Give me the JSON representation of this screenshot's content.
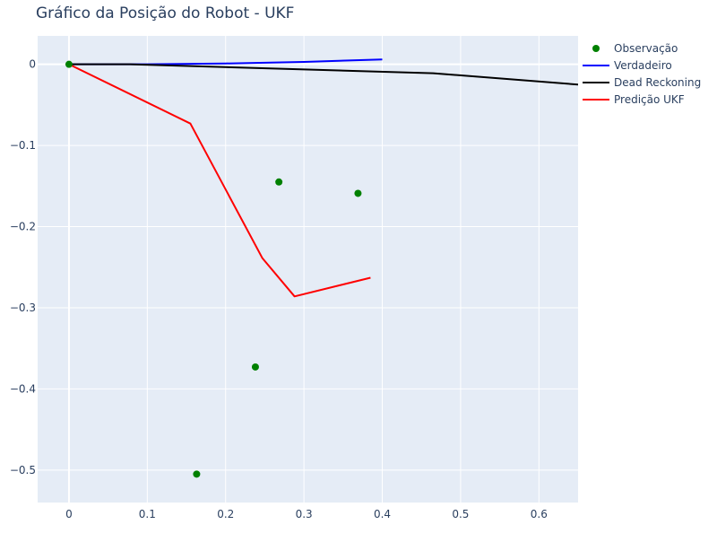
{
  "chart_data": {
    "type": "line",
    "title": "Gráfico da Posição do Robot - UKF",
    "xlabel": "",
    "ylabel": "",
    "xlim": [
      -0.04,
      0.65
    ],
    "ylim": [
      -0.54,
      0.035
    ],
    "x_ticks": [
      0,
      0.1,
      0.2,
      0.3,
      0.4,
      0.5,
      0.6
    ],
    "x_tick_labels": [
      "0",
      "0.1",
      "0.2",
      "0.3",
      "0.4",
      "0.5",
      "0.6"
    ],
    "y_ticks": [
      0,
      -0.1,
      -0.2,
      -0.3,
      -0.4,
      -0.5
    ],
    "y_tick_labels": [
      "0",
      "−0.1",
      "−0.2",
      "−0.3",
      "−0.4",
      "−0.5"
    ],
    "grid": true,
    "legend_position": "top-right, outside plot",
    "background_color": "#e5ecf6",
    "series": [
      {
        "name": "Observação",
        "mode": "markers",
        "color": "#008000",
        "points": [
          {
            "x": 0.0,
            "y": 0.0
          },
          {
            "x": 0.268,
            "y": -0.145
          },
          {
            "x": 0.369,
            "y": -0.159
          },
          {
            "x": 0.238,
            "y": -0.373
          },
          {
            "x": 0.163,
            "y": -0.505
          }
        ]
      },
      {
        "name": "Verdadeiro",
        "mode": "lines",
        "color": "#0000ff",
        "points": [
          {
            "x": 0.0,
            "y": 0.0
          },
          {
            "x": 0.1,
            "y": 0.0
          },
          {
            "x": 0.2,
            "y": 0.001
          },
          {
            "x": 0.3,
            "y": 0.003
          },
          {
            "x": 0.4,
            "y": 0.006
          }
        ]
      },
      {
        "name": "Dead Reckoning",
        "mode": "lines",
        "color": "#000000",
        "points": [
          {
            "x": 0.0,
            "y": 0.0
          },
          {
            "x": 0.078,
            "y": 0.0
          },
          {
            "x": 0.465,
            "y": -0.011
          },
          {
            "x": 0.65,
            "y": -0.025
          }
        ]
      },
      {
        "name": "Predição UKF",
        "mode": "lines",
        "color": "#ff0000",
        "points": [
          {
            "x": 0.0,
            "y": 0.0
          },
          {
            "x": 0.155,
            "y": -0.073
          },
          {
            "x": 0.247,
            "y": -0.239
          },
          {
            "x": 0.288,
            "y": -0.286
          },
          {
            "x": 0.385,
            "y": -0.263
          }
        ]
      }
    ]
  }
}
